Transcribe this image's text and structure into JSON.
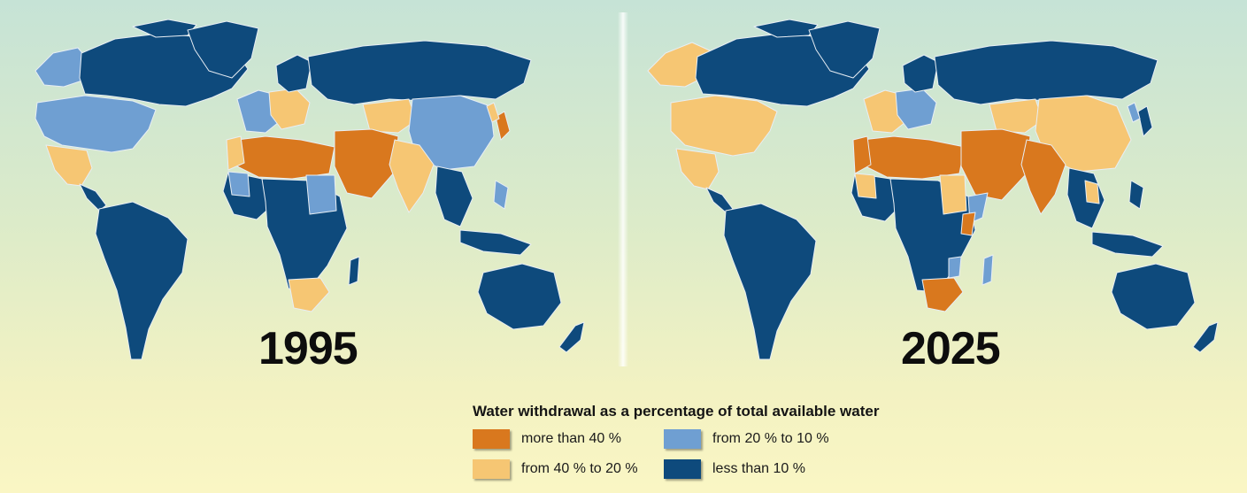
{
  "colors": {
    "more_than_40": "#d9781e",
    "from_40_to_20": "#f6c673",
    "from_20_to_10": "#6f9fd2",
    "less_than_10": "#0e4a7c",
    "border": "#e8eef4"
  },
  "maps": [
    {
      "year": "1995"
    },
    {
      "year": "2025"
    }
  ],
  "legend": {
    "title": "Water withdrawal as a percentage of total available water",
    "items": [
      {
        "label": "more than 40 %",
        "color": "#d9781e"
      },
      {
        "label": "from 20 % to 10 %",
        "color": "#6f9fd2"
      },
      {
        "label": "from 40 % to 20 %",
        "color": "#f6c673"
      },
      {
        "label": "less than 10 %",
        "color": "#0e4a7c"
      }
    ]
  }
}
